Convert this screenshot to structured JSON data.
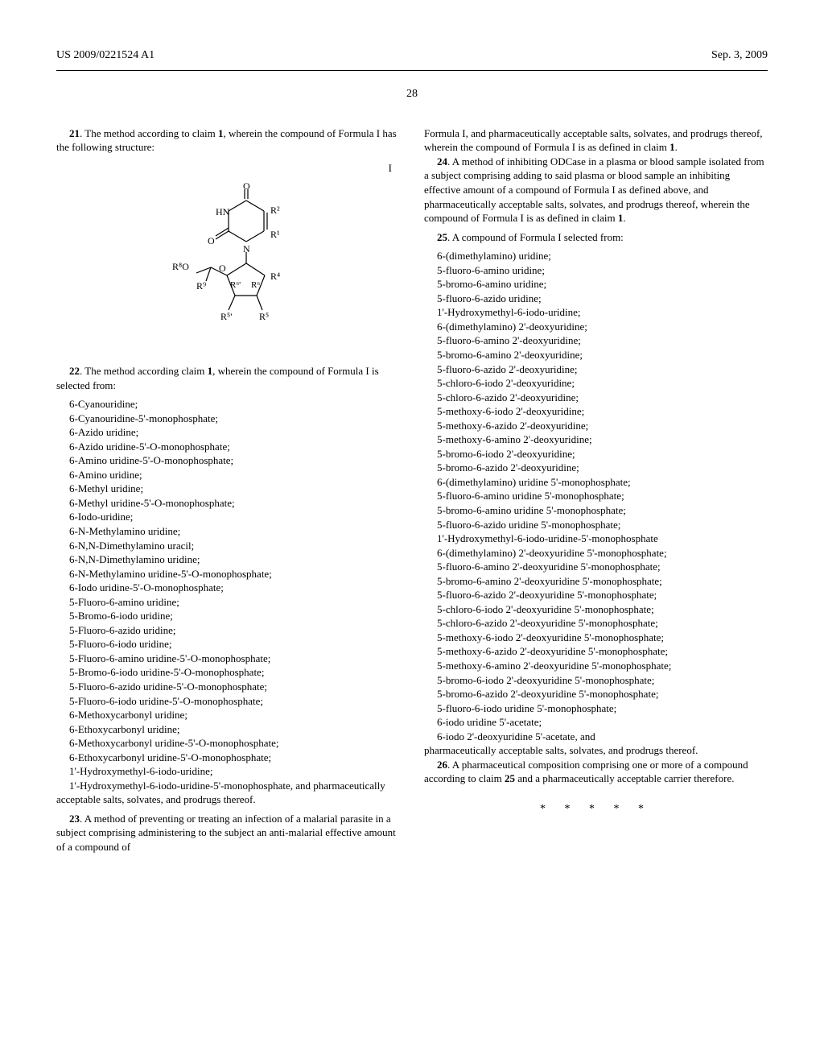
{
  "header": {
    "pub_number": "US 2009/0221524 A1",
    "pub_date": "Sep. 3, 2009"
  },
  "page_number": "28",
  "formula_label": "I",
  "structure": {
    "labels": {
      "O": "O",
      "HN": "HN",
      "R1": "R¹",
      "R2": "R²",
      "R4": "R⁴",
      "R5": "R⁵",
      "R5p": "R⁵'",
      "R6": "R⁶",
      "R6p": "R⁶'",
      "R8O": "R⁸O",
      "R9": "R⁹",
      "N": "N",
      "Osugar": "O"
    },
    "line_width": 1.2,
    "font_size": 12
  },
  "claims": {
    "c21": {
      "num": "21",
      "text_before": ". The method according to claim ",
      "ref": "1",
      "text_after": ", wherein the compound of Formula I has the following structure:"
    },
    "c22": {
      "num": "22",
      "text_before": ". The method according claim ",
      "ref": "1",
      "text_after": ", wherein the compound of Formula I is selected from:",
      "compounds": [
        "6-Cyanouridine;",
        "6-Cyanouridine-5'-monophosphate;",
        "6-Azido uridine;",
        "6-Azido uridine-5'-O-monophosphate;",
        "6-Amino uridine-5'-O-monophosphate;",
        "6-Amino uridine;",
        "6-Methyl uridine;",
        "6-Methyl uridine-5'-O-monophosphate;",
        "6-Iodo-uridine;",
        "6-N-Methylamino uridine;",
        "6-N,N-Dimethylamino uracil;",
        "6-N,N-Dimethylamino uridine;",
        "6-N-Methylamino uridine-5'-O-monophosphate;",
        "6-Iodo uridine-5'-O-monophosphate;",
        "5-Fluoro-6-amino uridine;",
        "5-Bromo-6-iodo uridine;",
        "5-Fluoro-6-azido uridine;",
        "5-Fluoro-6-iodo uridine;",
        "5-Fluoro-6-amino uridine-5'-O-monophosphate;",
        "5-Bromo-6-iodo uridine-5'-O-monophosphate;",
        "5-Fluoro-6-azido uridine-5'-O-monophosphate;",
        "5-Fluoro-6-iodo uridine-5'-O-monophosphate;",
        "6-Methoxycarbonyl uridine;",
        "6-Ethoxycarbonyl uridine;",
        "6-Methoxycarbonyl uridine-5'-O-monophosphate;",
        "6-Ethoxycarbonyl uridine-5'-O-monophosphate;",
        "1'-Hydroxymethyl-6-iodo-uridine;"
      ],
      "tail": "1'-Hydroxymethyl-6-iodo-uridine-5'-monophosphate, and pharmaceutically acceptable salts, solvates, and prodrugs thereof."
    },
    "c23": {
      "num": "23",
      "text": ". A method of preventing or treating an infection of a malarial parasite in a subject comprising administering to the subject an anti-malarial effective amount of a compound of"
    },
    "c23_cont": {
      "text_before": "Formula I, and pharmaceutically acceptable salts, solvates, and prodrugs thereof, wherein the compound of Formula I is as defined in claim ",
      "ref": "1",
      "text_after": "."
    },
    "c24": {
      "num": "24",
      "text_before": ". A method of inhibiting ODCase in a plasma or blood sample isolated from a subject comprising adding to said plasma or blood sample an inhibiting effective amount of a compound of Formula I as defined above, and pharmaceutically acceptable salts, solvates, and prodrugs thereof, wherein the compound of Formula I is as defined in claim ",
      "ref": "1",
      "text_after": "."
    },
    "c25": {
      "num": "25",
      "text": ". A compound of Formula I selected from:",
      "compounds": [
        "6-(dimethylamino) uridine;",
        "5-fluoro-6-amino uridine;",
        "5-bromo-6-amino uridine;",
        "5-fluoro-6-azido uridine;",
        "1'-Hydroxymethyl-6-iodo-uridine;",
        "6-(dimethylamino) 2'-deoxyuridine;",
        "5-fluoro-6-amino 2'-deoxyuridine;",
        "5-bromo-6-amino 2'-deoxyuridine;",
        "5-fluoro-6-azido 2'-deoxyuridine;",
        "5-chloro-6-iodo 2'-deoxyuridine;",
        "5-chloro-6-azido 2'-deoxyuridine;",
        "5-methoxy-6-iodo 2'-deoxyuridine;",
        "5-methoxy-6-azido 2'-deoxyuridine;",
        "5-methoxy-6-amino 2'-deoxyuridine;",
        "5-bromo-6-iodo 2'-deoxyuridine;",
        "5-bromo-6-azido 2'-deoxyuridine;",
        "6-(dimethylamino) uridine 5'-monophosphate;",
        "5-fluoro-6-amino uridine 5'-monophosphate;",
        "5-bromo-6-amino uridine 5'-monophosphate;",
        "5-fluoro-6-azido uridine 5'-monophosphate;",
        "1'-Hydroxymethyl-6-iodo-uridine-5'-monophosphate",
        "6-(dimethylamino) 2'-deoxyuridine 5'-monophosphate;",
        "5-fluoro-6-amino 2'-deoxyuridine 5'-monophosphate;",
        "5-bromo-6-amino 2'-deoxyuridine 5'-monophosphate;",
        "5-fluoro-6-azido 2'-deoxyuridine 5'-monophosphate;",
        "5-chloro-6-iodo 2'-deoxyuridine 5'-monophosphate;",
        "5-chloro-6-azido 2'-deoxyuridine 5'-monophosphate;",
        "5-methoxy-6-iodo 2'-deoxyuridine 5'-monophosphate;",
        "5-methoxy-6-azido 2'-deoxyuridine 5'-monophosphate;",
        "5-methoxy-6-amino 2'-deoxyuridine 5'-monophosphate;",
        "5-bromo-6-iodo 2'-deoxyuridine 5'-monophosphate;",
        "5-bromo-6-azido 2'-deoxyuridine 5'-monophosphate;",
        "5-fluoro-6-iodo uridine 5'-monophosphate;",
        "6-iodo uridine 5'-acetate;",
        "6-iodo 2'-deoxyuridine 5'-acetate, and"
      ],
      "tail": "pharmaceutically acceptable salts, solvates, and prodrugs thereof."
    },
    "c26": {
      "num": "26",
      "text_before": ". A pharmaceutical composition comprising one or more of a compound according to claim ",
      "ref": "25",
      "text_after": " and a pharmaceutically acceptable carrier therefore."
    }
  },
  "end_marks": "*   *   *   *   *"
}
